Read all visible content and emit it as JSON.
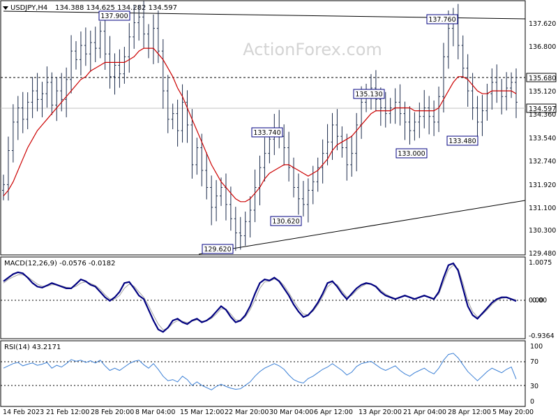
{
  "header": {
    "symbol_tf": "USDJPY,H4",
    "ohlc": "134.388 134.625 134.282 134.597"
  },
  "watermark": "ActionForex.com",
  "colors": {
    "bars": "#1a2a4a",
    "ma": "#cc0000",
    "macd_line": "#000080",
    "macd_signal": "#a0a0a0",
    "rsi": "#3a7fd5",
    "line": "#000000",
    "label_border": "#000080"
  },
  "chart_data": [
    {
      "type": "bar",
      "panel": "price",
      "title": "USDJPY,H4",
      "y_axis": {
        "ticks": [
          "137.620",
          "136.800",
          "135.680",
          "135.120",
          "134.360",
          "133.540",
          "132.740",
          "131.920",
          "131.100",
          "130.300",
          "129.480"
        ],
        "range": [
          129.3,
          138.1
        ]
      },
      "x_axis": {
        "ticks": [
          "14 Feb 2023",
          "21 Feb 12:00",
          "28 Feb 20:00",
          "8 Mar 04:00",
          "15 Mar 12:00",
          "22 Mar 20:00",
          "30 Mar 04:00",
          "6 Apr 12:00",
          "13 Apr 20:00",
          "21 Apr 04:00",
          "28 Apr 12:00",
          "5 May 20:00"
        ]
      },
      "highlighted_levels": {
        "resistance": "135.680",
        "last_price": "134.597"
      },
      "series": [
        {
          "kind": "close",
          "values": [
            131.7,
            132.9,
            133.9,
            134.4,
            134.0,
            134.6,
            135.0,
            134.7,
            134.9,
            135.3,
            134.5,
            135.0,
            134.7,
            135.4,
            136.4,
            136.1,
            136.6,
            136.3,
            136.7,
            136.5,
            137.1,
            136.3,
            135.5,
            135.9,
            135.6,
            136.2,
            136.9,
            137.4,
            137.6,
            137.0,
            136.5,
            137.2,
            136.4,
            135.0,
            134.0,
            134.2,
            133.6,
            134.6,
            133.8,
            132.4,
            133.0,
            132.2,
            131.6,
            130.9,
            131.3,
            131.6,
            131.0,
            130.5,
            130.0,
            129.9,
            130.4,
            130.8,
            131.6,
            132.3,
            132.8,
            133.3,
            133.7,
            133.4,
            133.0,
            132.3,
            131.6,
            131.2,
            131.0,
            131.5,
            131.8,
            132.3,
            132.8,
            133.2,
            133.8,
            133.4,
            133.0,
            132.4,
            132.8,
            133.8,
            134.6,
            134.9,
            135.1,
            134.7,
            134.4,
            134.2,
            134.4,
            134.6,
            134.2,
            133.9,
            133.6,
            133.9,
            134.1,
            134.4,
            134.1,
            133.9,
            134.8,
            136.2,
            137.2,
            137.5,
            136.6,
            135.8,
            135.0,
            134.4,
            133.9,
            134.3,
            134.9,
            135.3,
            135.0,
            134.8,
            135.1,
            135.3,
            134.6
          ]
        },
        {
          "kind": "ma",
          "name": "MA",
          "values": [
            131.3,
            131.5,
            131.8,
            132.2,
            132.6,
            133.0,
            133.3,
            133.6,
            133.8,
            134.0,
            134.2,
            134.4,
            134.6,
            134.8,
            135.0,
            135.2,
            135.4,
            135.5,
            135.7,
            135.8,
            135.9,
            136.0,
            136.0,
            136.0,
            136.0,
            136.0,
            136.1,
            136.2,
            136.4,
            136.5,
            136.5,
            136.5,
            136.3,
            136.1,
            135.8,
            135.5,
            135.1,
            134.8,
            134.4,
            134.0,
            133.6,
            133.2,
            132.8,
            132.4,
            132.1,
            131.8,
            131.6,
            131.4,
            131.2,
            131.1,
            131.1,
            131.2,
            131.4,
            131.6,
            131.9,
            132.1,
            132.2,
            132.3,
            132.4,
            132.4,
            132.3,
            132.2,
            132.1,
            132.0,
            132.1,
            132.2,
            132.4,
            132.6,
            132.9,
            133.1,
            133.2,
            133.3,
            133.4,
            133.6,
            133.8,
            134.0,
            134.2,
            134.3,
            134.3,
            134.3,
            134.3,
            134.4,
            134.4,
            134.4,
            134.4,
            134.3,
            134.3,
            134.3,
            134.3,
            134.3,
            134.4,
            134.7,
            135.0,
            135.3,
            135.5,
            135.5,
            135.4,
            135.2,
            135.0,
            134.9,
            134.9,
            135.0,
            135.0,
            135.0,
            135.0,
            135.0,
            134.9
          ]
        }
      ],
      "annotations": [
        "137.900",
        "129.620",
        "133.740",
        "130.620",
        "135.130",
        "133.000",
        "137.760",
        "133.480"
      ],
      "trendlines": [
        {
          "from": [
            "start",
            137.86
          ],
          "to": [
            "end",
            137.72
          ]
        },
        {
          "from": [
            "22 Mar 20:00",
            129.55
          ],
          "to": [
            "end",
            131.36
          ]
        }
      ]
    },
    {
      "type": "line",
      "panel": "macd",
      "title": "MACD(12,26,9) -0.0576 -0.0182",
      "y_axis": {
        "ticks": [
          "1.0075",
          "0.00",
          "0.00",
          "-0.9364"
        ],
        "range": [
          -1.05,
          1.1
        ]
      },
      "series": [
        {
          "name": "MACD",
          "values": [
            0.5,
            0.6,
            0.7,
            0.75,
            0.72,
            0.6,
            0.45,
            0.35,
            0.32,
            0.38,
            0.45,
            0.4,
            0.35,
            0.3,
            0.3,
            0.42,
            0.55,
            0.5,
            0.4,
            0.35,
            0.2,
            0.05,
            -0.05,
            0.05,
            0.2,
            0.45,
            0.48,
            0.3,
            0.1,
            0.0,
            -0.3,
            -0.6,
            -0.85,
            -0.92,
            -0.8,
            -0.6,
            -0.55,
            -0.65,
            -0.7,
            -0.6,
            -0.55,
            -0.65,
            -0.6,
            -0.5,
            -0.35,
            -0.2,
            -0.3,
            -0.5,
            -0.65,
            -0.6,
            -0.45,
            -0.2,
            0.15,
            0.45,
            0.55,
            0.52,
            0.6,
            0.5,
            0.3,
            0.1,
            -0.15,
            -0.35,
            -0.5,
            -0.45,
            -0.3,
            -0.1,
            0.15,
            0.45,
            0.5,
            0.35,
            0.15,
            0.0,
            0.15,
            0.3,
            0.4,
            0.45,
            0.42,
            0.35,
            0.2,
            0.1,
            0.05,
            0.0,
            0.05,
            0.1,
            0.05,
            0.0,
            0.05,
            0.1,
            0.05,
            0.0,
            0.2,
            0.6,
            0.95,
            1.0,
            0.8,
            0.3,
            -0.2,
            -0.45,
            -0.55,
            -0.4,
            -0.25,
            -0.1,
            0.0,
            0.05,
            0.05,
            0.0,
            -0.06
          ]
        },
        {
          "name": "Signal",
          "values": [
            0.45,
            0.55,
            0.62,
            0.68,
            0.68,
            0.62,
            0.52,
            0.42,
            0.36,
            0.36,
            0.4,
            0.4,
            0.37,
            0.33,
            0.31,
            0.36,
            0.45,
            0.48,
            0.44,
            0.38,
            0.27,
            0.12,
            0.0,
            0.0,
            0.1,
            0.3,
            0.42,
            0.36,
            0.2,
            0.05,
            -0.18,
            -0.45,
            -0.7,
            -0.86,
            -0.82,
            -0.68,
            -0.6,
            -0.62,
            -0.66,
            -0.62,
            -0.58,
            -0.62,
            -0.61,
            -0.54,
            -0.42,
            -0.27,
            -0.28,
            -0.42,
            -0.58,
            -0.6,
            -0.5,
            -0.3,
            -0.02,
            0.3,
            0.48,
            0.5,
            0.56,
            0.52,
            0.38,
            0.18,
            -0.05,
            -0.26,
            -0.42,
            -0.44,
            -0.34,
            -0.16,
            0.07,
            0.34,
            0.46,
            0.4,
            0.22,
            0.06,
            0.1,
            0.24,
            0.35,
            0.42,
            0.42,
            0.37,
            0.25,
            0.14,
            0.07,
            0.02,
            0.04,
            0.08,
            0.06,
            0.02,
            0.04,
            0.08,
            0.06,
            0.02,
            0.14,
            0.48,
            0.82,
            0.95,
            0.85,
            0.45,
            -0.05,
            -0.35,
            -0.5,
            -0.43,
            -0.3,
            -0.15,
            -0.04,
            0.02,
            0.04,
            0.01,
            -0.02
          ]
        }
      ]
    },
    {
      "type": "line",
      "panel": "rsi",
      "title": "RSI(14) 43.2171",
      "y_axis": {
        "ticks": [
          "100",
          "70",
          "30",
          "0"
        ],
        "range": [
          0,
          105
        ]
      },
      "levels": [
        70,
        30
      ],
      "series": [
        {
          "name": "RSI",
          "values": [
            62,
            66,
            70,
            72,
            66,
            69,
            71,
            67,
            69,
            72,
            62,
            67,
            64,
            70,
            77,
            74,
            76,
            72,
            75,
            71,
            76,
            66,
            58,
            62,
            58,
            64,
            70,
            74,
            76,
            68,
            62,
            70,
            60,
            48,
            40,
            42,
            38,
            48,
            42,
            32,
            38,
            32,
            28,
            24,
            30,
            34,
            30,
            27,
            25,
            26,
            32,
            38,
            48,
            56,
            62,
            66,
            70,
            66,
            60,
            50,
            42,
            38,
            36,
            44,
            48,
            54,
            60,
            64,
            70,
            64,
            58,
            50,
            55,
            65,
            70,
            72,
            74,
            68,
            62,
            58,
            62,
            66,
            58,
            52,
            48,
            54,
            58,
            62,
            56,
            52,
            62,
            76,
            86,
            88,
            80,
            68,
            56,
            48,
            40,
            48,
            56,
            62,
            58,
            54,
            60,
            64,
            43
          ]
        }
      ]
    }
  ]
}
